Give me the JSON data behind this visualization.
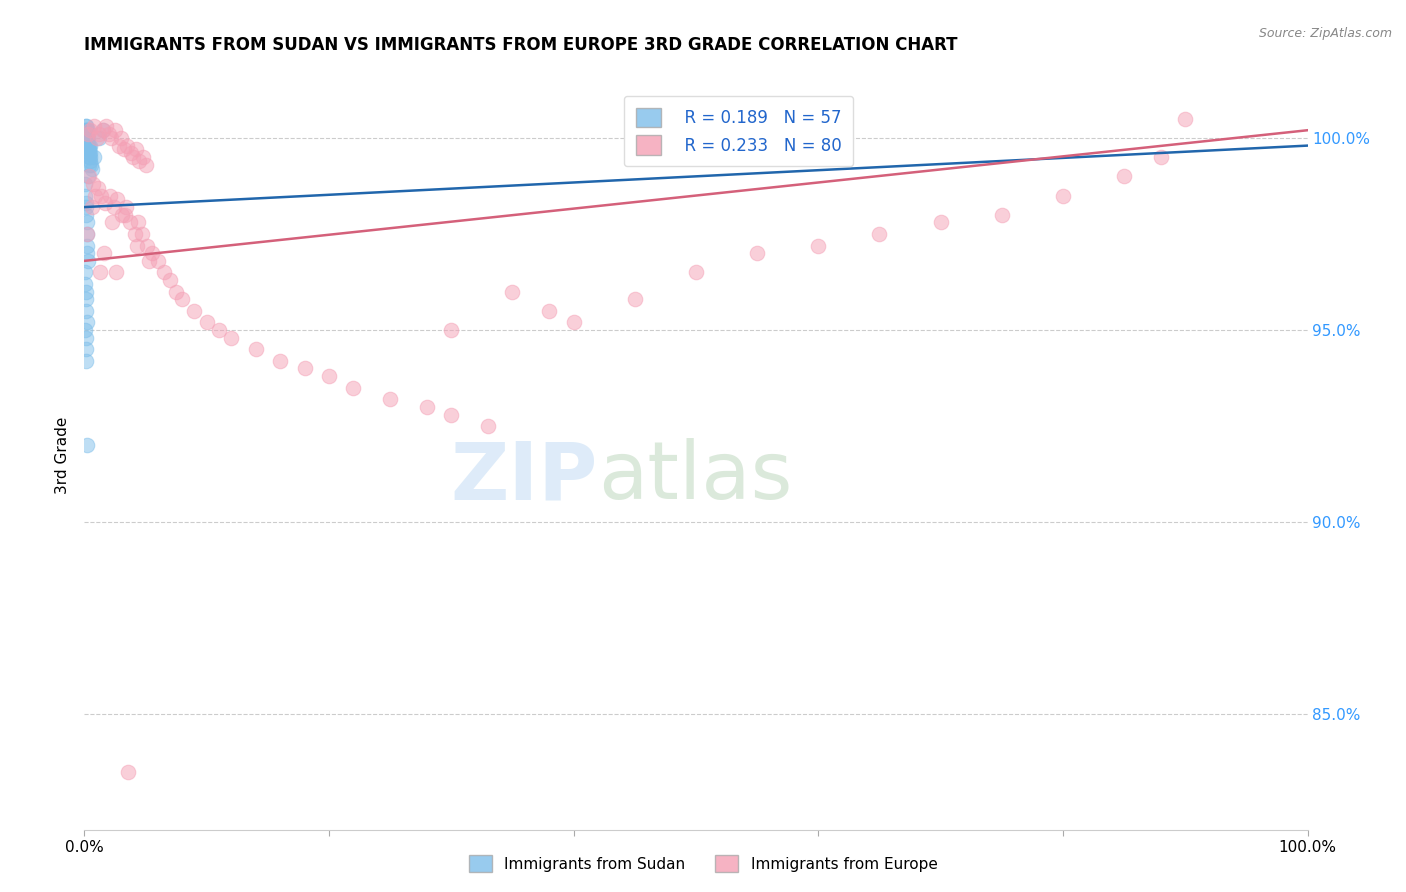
{
  "title": "IMMIGRANTS FROM SUDAN VS IMMIGRANTS FROM EUROPE 3RD GRADE CORRELATION CHART",
  "source": "Source: ZipAtlas.com",
  "ylabel": "3rd Grade",
  "yaxis_ticks": [
    85.0,
    90.0,
    95.0,
    100.0
  ],
  "xlim": [
    0.0,
    100.0
  ],
  "ylim": [
    82.0,
    101.5
  ],
  "legend_r1": "R = 0.189",
  "legend_n1": "N = 57",
  "legend_r2": "R = 0.233",
  "legend_n2": "N = 80",
  "color_sudan": "#7fbfea",
  "color_europe": "#f4a0b5",
  "color_line_sudan": "#2166ac",
  "color_line_europe": "#d4607a",
  "sudan_trend": [
    98.2,
    99.8
  ],
  "europe_trend": [
    96.8,
    100.2
  ],
  "sudan_x": [
    0.05,
    0.08,
    0.1,
    0.1,
    0.12,
    0.12,
    0.13,
    0.15,
    0.15,
    0.18,
    0.18,
    0.2,
    0.2,
    0.22,
    0.22,
    0.25,
    0.25,
    0.28,
    0.3,
    0.3,
    0.32,
    0.35,
    0.38,
    0.4,
    0.42,
    0.45,
    0.48,
    0.5,
    0.55,
    0.6,
    0.05,
    0.08,
    0.1,
    0.12,
    0.15,
    0.18,
    0.2,
    0.22,
    0.25,
    0.28,
    0.05,
    0.08,
    0.1,
    0.12,
    0.15,
    0.18,
    0.08,
    0.1,
    0.12,
    0.15,
    0.8,
    1.2,
    1.5,
    0.5,
    0.3,
    0.4,
    0.2
  ],
  "sudan_y": [
    100.1,
    100.2,
    100.0,
    100.3,
    100.1,
    100.2,
    100.0,
    100.1,
    100.3,
    100.0,
    99.8,
    100.0,
    100.2,
    100.1,
    99.9,
    100.0,
    100.1,
    99.8,
    100.0,
    100.2,
    99.7,
    99.8,
    99.6,
    99.7,
    99.5,
    99.6,
    99.4,
    99.5,
    99.3,
    99.2,
    98.8,
    98.5,
    98.3,
    98.2,
    98.0,
    97.8,
    97.5,
    97.2,
    97.0,
    96.8,
    96.5,
    96.2,
    96.0,
    95.8,
    95.5,
    95.2,
    95.0,
    94.8,
    94.5,
    94.2,
    99.5,
    100.0,
    100.2,
    99.8,
    99.0,
    99.3,
    92.0
  ],
  "europe_x": [
    0.3,
    0.5,
    0.8,
    1.0,
    1.2,
    1.5,
    1.8,
    2.0,
    2.2,
    2.5,
    2.8,
    3.0,
    3.2,
    3.5,
    3.8,
    4.0,
    4.2,
    4.5,
    4.8,
    5.0,
    0.4,
    0.7,
    1.1,
    1.4,
    1.7,
    2.1,
    2.4,
    2.7,
    3.1,
    3.4,
    3.7,
    4.1,
    4.4,
    4.7,
    5.1,
    5.5,
    6.0,
    6.5,
    7.0,
    7.5,
    8.0,
    9.0,
    10.0,
    11.0,
    12.0,
    14.0,
    16.0,
    18.0,
    20.0,
    22.0,
    25.0,
    28.0,
    30.0,
    33.0,
    35.0,
    38.0,
    40.0,
    45.0,
    50.0,
    55.0,
    60.0,
    65.0,
    70.0,
    75.0,
    80.0,
    85.0,
    88.0,
    90.0,
    0.2,
    0.6,
    1.3,
    2.3,
    3.3,
    4.3,
    5.3,
    0.9,
    1.6,
    2.6,
    3.6,
    30.0
  ],
  "europe_y": [
    100.1,
    100.2,
    100.3,
    100.0,
    100.1,
    100.2,
    100.3,
    100.1,
    100.0,
    100.2,
    99.8,
    100.0,
    99.7,
    99.8,
    99.6,
    99.5,
    99.7,
    99.4,
    99.5,
    99.3,
    99.0,
    98.8,
    98.7,
    98.5,
    98.3,
    98.5,
    98.2,
    98.4,
    98.0,
    98.2,
    97.8,
    97.5,
    97.8,
    97.5,
    97.2,
    97.0,
    96.8,
    96.5,
    96.3,
    96.0,
    95.8,
    95.5,
    95.2,
    95.0,
    94.8,
    94.5,
    94.2,
    94.0,
    93.8,
    93.5,
    93.2,
    93.0,
    92.8,
    92.5,
    96.0,
    95.5,
    95.2,
    95.8,
    96.5,
    97.0,
    97.2,
    97.5,
    97.8,
    98.0,
    98.5,
    99.0,
    99.5,
    100.5,
    97.5,
    98.2,
    96.5,
    97.8,
    98.0,
    97.2,
    96.8,
    98.5,
    97.0,
    96.5,
    83.5,
    95.0
  ]
}
